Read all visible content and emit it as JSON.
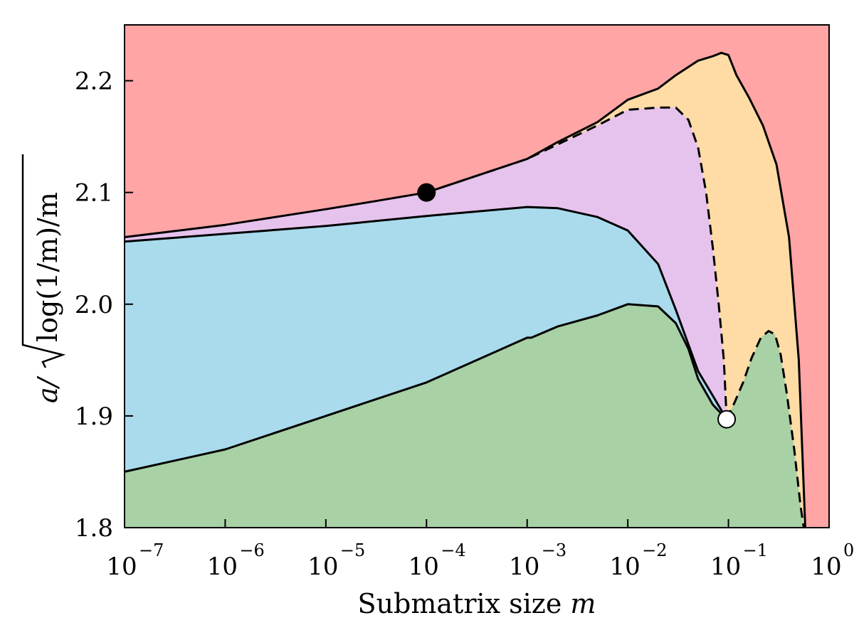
{
  "chart_data": {
    "type": "area",
    "title": "",
    "x_scale": "log",
    "xlim": [
      1e-07,
      1
    ],
    "ylim": [
      1.8,
      2.25
    ],
    "grid": false,
    "legend": "none",
    "xlabel": {
      "text": "Submatrix size ",
      "var": "m"
    },
    "ylabel": {
      "prefix": "a/",
      "radicand": "log(1/m)/m"
    },
    "x_ticks": [
      {
        "base": "10",
        "exp": "−7"
      },
      {
        "base": "10",
        "exp": "−6"
      },
      {
        "base": "10",
        "exp": "−5"
      },
      {
        "base": "10",
        "exp": "−4"
      },
      {
        "base": "10",
        "exp": "−3"
      },
      {
        "base": "10",
        "exp": "−2"
      },
      {
        "base": "10",
        "exp": "−1"
      },
      {
        "base": "10",
        "exp": "0"
      }
    ],
    "y_ticks": [
      "1.8",
      "1.9",
      "2.0",
      "2.1",
      "2.2"
    ],
    "y_tick_values": [
      1.8,
      1.9,
      2.0,
      2.1,
      2.2
    ],
    "colors": {
      "background_region": "#ffa5a5",
      "orange_region": "#ffdca5",
      "purple_region": "#e6c3ed",
      "blue_region": "#a9dbec",
      "green_region": "#a8d1a5"
    },
    "series": [
      {
        "key": "outer_upper",
        "style": "solid",
        "x": [
          1e-07,
          1e-06,
          1e-05,
          3e-05,
          0.0001,
          0.001,
          0.002,
          0.005,
          0.01,
          0.02,
          0.03,
          0.05,
          0.07,
          0.085,
          0.1,
          0.12,
          0.16,
          0.22,
          0.3,
          0.4,
          0.5,
          0.58
        ],
        "y": [
          2.06,
          2.071,
          2.085,
          2.092,
          2.1,
          2.13,
          2.145,
          2.163,
          2.183,
          2.193,
          2.205,
          2.218,
          2.222,
          2.225,
          2.223,
          2.205,
          2.185,
          2.16,
          2.125,
          2.06,
          1.95,
          1.8
        ]
      },
      {
        "key": "purple_upper",
        "style": "dashed",
        "x": [
          0.0001,
          0.001,
          0.005,
          0.01,
          0.02,
          0.03,
          0.04,
          0.05,
          0.06,
          0.07,
          0.08,
          0.09,
          0.096
        ],
        "y": [
          2.1,
          2.13,
          2.16,
          2.174,
          2.176,
          2.176,
          2.165,
          2.14,
          2.1,
          2.05,
          2.0,
          1.95,
          1.897
        ]
      },
      {
        "key": "blue_upper",
        "style": "solid",
        "x": [
          1e-07,
          1e-05,
          0.0001,
          0.001,
          0.002,
          0.005,
          0.01,
          0.02,
          0.03,
          0.05,
          0.07,
          0.096
        ],
        "y": [
          2.056,
          2.07,
          2.079,
          2.087,
          2.086,
          2.078,
          2.066,
          2.036,
          1.995,
          1.94,
          1.918,
          1.897
        ]
      },
      {
        "key": "green_upper",
        "style": "solid",
        "x": [
          1e-07,
          1e-06,
          1e-05,
          0.0001,
          0.001,
          0.0011,
          0.002,
          0.005,
          0.01,
          0.02,
          0.03,
          0.04,
          0.05,
          0.07,
          0.096
        ],
        "y": [
          1.85,
          1.87,
          1.9,
          1.93,
          1.97,
          1.97,
          1.98,
          1.99,
          2.0,
          1.998,
          1.983,
          1.96,
          1.933,
          1.91,
          1.897
        ]
      },
      {
        "key": "green_right_upper",
        "style": "dashed",
        "x": [
          0.096,
          0.115,
          0.14,
          0.17,
          0.21,
          0.25,
          0.29,
          0.33,
          0.38,
          0.45,
          0.52,
          0.56
        ],
        "y": [
          1.897,
          1.912,
          1.93,
          1.952,
          1.97,
          1.976,
          1.973,
          1.955,
          1.92,
          1.87,
          1.82,
          1.8
        ]
      }
    ],
    "markers": [
      {
        "key": "filled_point",
        "x": 0.0001,
        "y": 2.1,
        "fill": "#000000"
      },
      {
        "key": "open_point",
        "x": 0.096,
        "y": 1.897,
        "fill": "#ffffff"
      }
    ]
  }
}
